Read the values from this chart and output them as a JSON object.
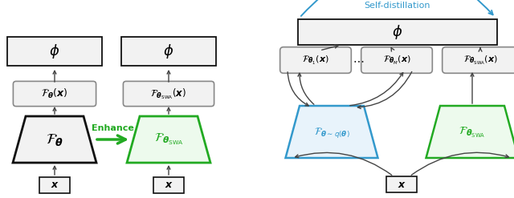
{
  "bg_color": "#ffffff",
  "gray_fill": "#f2f2f2",
  "green_fill": "#edfaed",
  "blue_fill": "#e8f3fb",
  "green_edge": "#22aa22",
  "blue_edge": "#3399cc",
  "dark_edge": "#111111",
  "mid_edge": "#888888",
  "arrow_color": "#444444",
  "green_text": "#22aa22",
  "blue_text": "#3399cc",
  "blue_arc": "#3399cc",
  "enhance_color": "#22aa22",
  "self_distill_color": "#3399cc",
  "enhance_text": "Enhance",
  "self_distill_text": "Self-distillation"
}
